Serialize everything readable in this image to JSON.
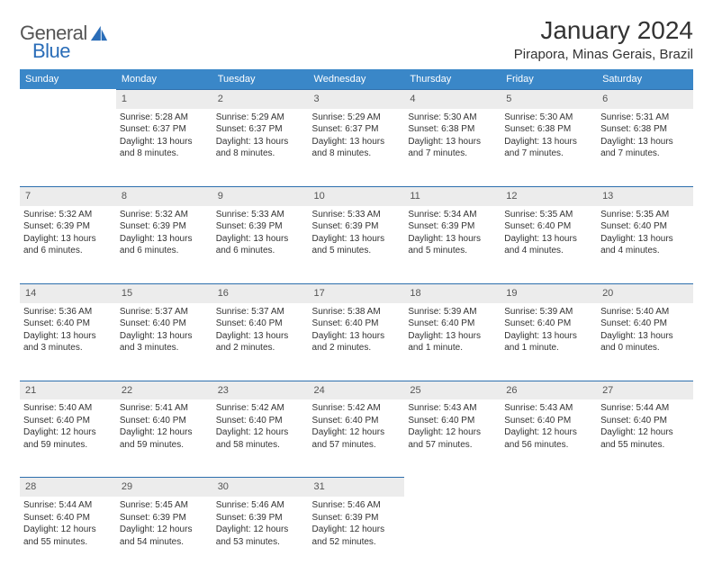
{
  "brand": {
    "text1": "General",
    "text2": "Blue"
  },
  "title": "January 2024",
  "location": "Pirapora, Minas Gerais, Brazil",
  "colors": {
    "header_bg": "#3a87c8",
    "header_text": "#ffffff",
    "daynum_bg": "#ececec",
    "daynum_border": "#2d6fad",
    "body_text": "#333333",
    "logo_gray": "#555555",
    "logo_blue": "#2a6db8"
  },
  "weekday_labels": [
    "Sunday",
    "Monday",
    "Tuesday",
    "Wednesday",
    "Thursday",
    "Friday",
    "Saturday"
  ],
  "first_weekday_index": 1,
  "days": [
    {
      "n": 1,
      "sunrise": "5:28 AM",
      "sunset": "6:37 PM",
      "daylight": "13 hours and 8 minutes."
    },
    {
      "n": 2,
      "sunrise": "5:29 AM",
      "sunset": "6:37 PM",
      "daylight": "13 hours and 8 minutes."
    },
    {
      "n": 3,
      "sunrise": "5:29 AM",
      "sunset": "6:37 PM",
      "daylight": "13 hours and 8 minutes."
    },
    {
      "n": 4,
      "sunrise": "5:30 AM",
      "sunset": "6:38 PM",
      "daylight": "13 hours and 7 minutes."
    },
    {
      "n": 5,
      "sunrise": "5:30 AM",
      "sunset": "6:38 PM",
      "daylight": "13 hours and 7 minutes."
    },
    {
      "n": 6,
      "sunrise": "5:31 AM",
      "sunset": "6:38 PM",
      "daylight": "13 hours and 7 minutes."
    },
    {
      "n": 7,
      "sunrise": "5:32 AM",
      "sunset": "6:39 PM",
      "daylight": "13 hours and 6 minutes."
    },
    {
      "n": 8,
      "sunrise": "5:32 AM",
      "sunset": "6:39 PM",
      "daylight": "13 hours and 6 minutes."
    },
    {
      "n": 9,
      "sunrise": "5:33 AM",
      "sunset": "6:39 PM",
      "daylight": "13 hours and 6 minutes."
    },
    {
      "n": 10,
      "sunrise": "5:33 AM",
      "sunset": "6:39 PM",
      "daylight": "13 hours and 5 minutes."
    },
    {
      "n": 11,
      "sunrise": "5:34 AM",
      "sunset": "6:39 PM",
      "daylight": "13 hours and 5 minutes."
    },
    {
      "n": 12,
      "sunrise": "5:35 AM",
      "sunset": "6:40 PM",
      "daylight": "13 hours and 4 minutes."
    },
    {
      "n": 13,
      "sunrise": "5:35 AM",
      "sunset": "6:40 PM",
      "daylight": "13 hours and 4 minutes."
    },
    {
      "n": 14,
      "sunrise": "5:36 AM",
      "sunset": "6:40 PM",
      "daylight": "13 hours and 3 minutes."
    },
    {
      "n": 15,
      "sunrise": "5:37 AM",
      "sunset": "6:40 PM",
      "daylight": "13 hours and 3 minutes."
    },
    {
      "n": 16,
      "sunrise": "5:37 AM",
      "sunset": "6:40 PM",
      "daylight": "13 hours and 2 minutes."
    },
    {
      "n": 17,
      "sunrise": "5:38 AM",
      "sunset": "6:40 PM",
      "daylight": "13 hours and 2 minutes."
    },
    {
      "n": 18,
      "sunrise": "5:39 AM",
      "sunset": "6:40 PM",
      "daylight": "13 hours and 1 minute."
    },
    {
      "n": 19,
      "sunrise": "5:39 AM",
      "sunset": "6:40 PM",
      "daylight": "13 hours and 1 minute."
    },
    {
      "n": 20,
      "sunrise": "5:40 AM",
      "sunset": "6:40 PM",
      "daylight": "13 hours and 0 minutes."
    },
    {
      "n": 21,
      "sunrise": "5:40 AM",
      "sunset": "6:40 PM",
      "daylight": "12 hours and 59 minutes."
    },
    {
      "n": 22,
      "sunrise": "5:41 AM",
      "sunset": "6:40 PM",
      "daylight": "12 hours and 59 minutes."
    },
    {
      "n": 23,
      "sunrise": "5:42 AM",
      "sunset": "6:40 PM",
      "daylight": "12 hours and 58 minutes."
    },
    {
      "n": 24,
      "sunrise": "5:42 AM",
      "sunset": "6:40 PM",
      "daylight": "12 hours and 57 minutes."
    },
    {
      "n": 25,
      "sunrise": "5:43 AM",
      "sunset": "6:40 PM",
      "daylight": "12 hours and 57 minutes."
    },
    {
      "n": 26,
      "sunrise": "5:43 AM",
      "sunset": "6:40 PM",
      "daylight": "12 hours and 56 minutes."
    },
    {
      "n": 27,
      "sunrise": "5:44 AM",
      "sunset": "6:40 PM",
      "daylight": "12 hours and 55 minutes."
    },
    {
      "n": 28,
      "sunrise": "5:44 AM",
      "sunset": "6:40 PM",
      "daylight": "12 hours and 55 minutes."
    },
    {
      "n": 29,
      "sunrise": "5:45 AM",
      "sunset": "6:39 PM",
      "daylight": "12 hours and 54 minutes."
    },
    {
      "n": 30,
      "sunrise": "5:46 AM",
      "sunset": "6:39 PM",
      "daylight": "12 hours and 53 minutes."
    },
    {
      "n": 31,
      "sunrise": "5:46 AM",
      "sunset": "6:39 PM",
      "daylight": "12 hours and 52 minutes."
    }
  ],
  "labels": {
    "sunrise": "Sunrise:",
    "sunset": "Sunset:",
    "daylight": "Daylight:"
  }
}
